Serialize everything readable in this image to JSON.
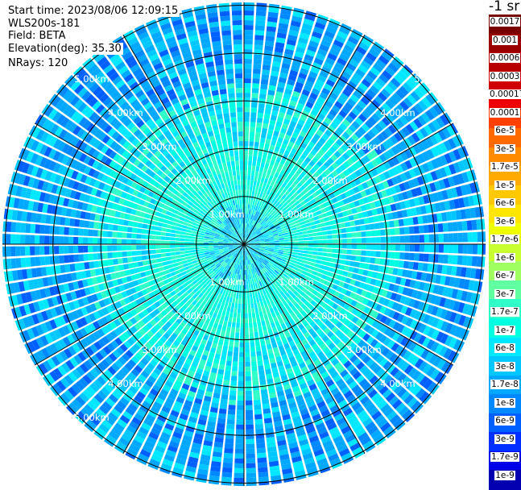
{
  "header": {
    "start_time": "Start time: 2023/08/06 12:09:15",
    "instrument": "WLS200s-181",
    "field": "Field: BETA",
    "elevation": "Elevation(deg): 35.30",
    "nrays": "NRays: 120"
  },
  "chart_data": {
    "type": "heatmap",
    "projection": "polar-ppi",
    "field": "BETA",
    "nrays": 120,
    "range_unit": "km",
    "range_rings": [
      1,
      2,
      3,
      4,
      5
    ],
    "range_ring_labels": [
      "1.00km",
      "2.00km",
      "3.00km",
      "4.00km",
      "5.00km"
    ],
    "spoke_spacing_deg": 30,
    "value_pattern": "center ~1e-7 to 3e-7 (aquamarine/cyan), outer range ~1e-8 to 1e-7 (blues)",
    "colorbar": {
      "title": "-1 sr",
      "scale": "log",
      "ticks": [
        "0.0017",
        "0.001",
        "0.0006",
        "0.0003",
        "0.00017",
        "0.0001",
        "6e-5",
        "3e-5",
        "1.7e-5",
        "1e-5",
        "6e-6",
        "3e-6",
        "1.7e-6",
        "1e-6",
        "6e-7",
        "3e-7",
        "1.7e-7",
        "1e-7",
        "6e-8",
        "3e-8",
        "1.7e-8",
        "1e-8",
        "6e-9",
        "3e-9",
        "1.7e-9",
        "1e-9"
      ],
      "colors": [
        "#7a0000",
        "#9a0000",
        "#b80000",
        "#d00000",
        "#ee0000",
        "#ff4000",
        "#ff6a00",
        "#ff8c00",
        "#ffaa00",
        "#ffc800",
        "#ffe600",
        "#f0ff00",
        "#c8ff30",
        "#a0ff60",
        "#60ffa0",
        "#30ffc8",
        "#00ffe0",
        "#00e8ff",
        "#00c8ff",
        "#00a8ff",
        "#0088ff",
        "#0060ff",
        "#0030ff",
        "#0000e8",
        "#0000b0",
        "#000080"
      ]
    }
  }
}
